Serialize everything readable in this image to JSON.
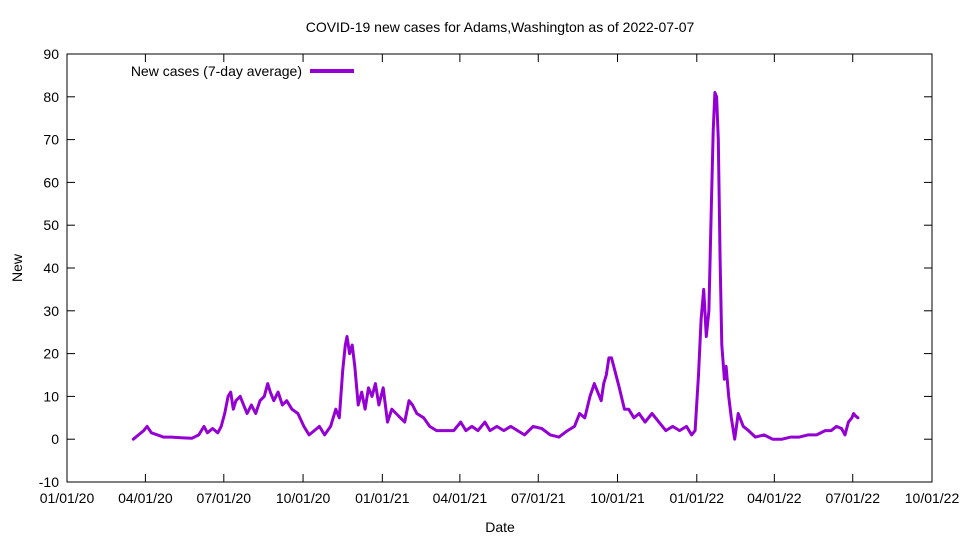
{
  "chart_data": {
    "type": "line",
    "title": "COVID-19 new cases for Adams,Washington as of 2022-07-07",
    "xlabel": "Date",
    "ylabel": "New",
    "xlim": [
      "2020-01-01",
      "2022-10-01"
    ],
    "ylim": [
      -10,
      90
    ],
    "grid": false,
    "legend_position": "top-left",
    "x_ticks": [
      "01/01/20",
      "04/01/20",
      "07/01/20",
      "10/01/20",
      "01/01/21",
      "04/01/21",
      "07/01/21",
      "10/01/21",
      "01/01/22",
      "04/01/22",
      "07/01/22",
      "10/01/22"
    ],
    "y_ticks": [
      -10,
      0,
      10,
      20,
      30,
      40,
      50,
      60,
      70,
      80,
      90
    ],
    "series": [
      {
        "name": "New cases (7-day average)",
        "color": "#9400d3",
        "points": [
          [
            "2020-03-18",
            0
          ],
          [
            "2020-03-24",
            1
          ],
          [
            "2020-03-30",
            2
          ],
          [
            "2020-04-03",
            3
          ],
          [
            "2020-04-08",
            1.5
          ],
          [
            "2020-04-15",
            1
          ],
          [
            "2020-04-22",
            0.5
          ],
          [
            "2020-05-01",
            0.5
          ],
          [
            "2020-05-15",
            0.3
          ],
          [
            "2020-05-25",
            0.2
          ],
          [
            "2020-06-02",
            1
          ],
          [
            "2020-06-08",
            3
          ],
          [
            "2020-06-12",
            1.5
          ],
          [
            "2020-06-18",
            2.5
          ],
          [
            "2020-06-24",
            1.5
          ],
          [
            "2020-06-28",
            3
          ],
          [
            "2020-07-02",
            6
          ],
          [
            "2020-07-06",
            10
          ],
          [
            "2020-07-09",
            11
          ],
          [
            "2020-07-12",
            7
          ],
          [
            "2020-07-15",
            9
          ],
          [
            "2020-07-20",
            10
          ],
          [
            "2020-07-24",
            8
          ],
          [
            "2020-07-28",
            6
          ],
          [
            "2020-08-02",
            8
          ],
          [
            "2020-08-07",
            6
          ],
          [
            "2020-08-12",
            9
          ],
          [
            "2020-08-17",
            10
          ],
          [
            "2020-08-21",
            13
          ],
          [
            "2020-08-24",
            11
          ],
          [
            "2020-08-28",
            9
          ],
          [
            "2020-09-02",
            11
          ],
          [
            "2020-09-07",
            8
          ],
          [
            "2020-09-12",
            9
          ],
          [
            "2020-09-18",
            7
          ],
          [
            "2020-09-25",
            6
          ],
          [
            "2020-10-02",
            3
          ],
          [
            "2020-10-08",
            1
          ],
          [
            "2020-10-14",
            2
          ],
          [
            "2020-10-20",
            3
          ],
          [
            "2020-10-26",
            1
          ],
          [
            "2020-11-02",
            3
          ],
          [
            "2020-11-08",
            7
          ],
          [
            "2020-11-12",
            5
          ],
          [
            "2020-11-16",
            16
          ],
          [
            "2020-11-19",
            22
          ],
          [
            "2020-11-21",
            24
          ],
          [
            "2020-11-24",
            20
          ],
          [
            "2020-11-27",
            22
          ],
          [
            "2020-11-30",
            17
          ],
          [
            "2020-12-04",
            8
          ],
          [
            "2020-12-08",
            11
          ],
          [
            "2020-12-12",
            7
          ],
          [
            "2020-12-16",
            12
          ],
          [
            "2020-12-20",
            10
          ],
          [
            "2020-12-24",
            13
          ],
          [
            "2020-12-28",
            8
          ],
          [
            "2021-01-02",
            12
          ],
          [
            "2021-01-07",
            4
          ],
          [
            "2021-01-12",
            7
          ],
          [
            "2021-01-17",
            6
          ],
          [
            "2021-01-22",
            5
          ],
          [
            "2021-01-27",
            4
          ],
          [
            "2021-02-01",
            9
          ],
          [
            "2021-02-05",
            8
          ],
          [
            "2021-02-10",
            6
          ],
          [
            "2021-02-18",
            5
          ],
          [
            "2021-02-25",
            3
          ],
          [
            "2021-03-05",
            2
          ],
          [
            "2021-03-15",
            2
          ],
          [
            "2021-03-25",
            2
          ],
          [
            "2021-04-02",
            4
          ],
          [
            "2021-04-08",
            2
          ],
          [
            "2021-04-15",
            3
          ],
          [
            "2021-04-22",
            2
          ],
          [
            "2021-04-30",
            4
          ],
          [
            "2021-05-06",
            2
          ],
          [
            "2021-05-14",
            3
          ],
          [
            "2021-05-22",
            2
          ],
          [
            "2021-05-30",
            3
          ],
          [
            "2021-06-07",
            2
          ],
          [
            "2021-06-15",
            1
          ],
          [
            "2021-06-25",
            3
          ],
          [
            "2021-07-05",
            2.5
          ],
          [
            "2021-07-15",
            1
          ],
          [
            "2021-07-25",
            0.5
          ],
          [
            "2021-08-04",
            2
          ],
          [
            "2021-08-12",
            3
          ],
          [
            "2021-08-18",
            6
          ],
          [
            "2021-08-24",
            5
          ],
          [
            "2021-08-30",
            10
          ],
          [
            "2021-09-04",
            13
          ],
          [
            "2021-09-08",
            11
          ],
          [
            "2021-09-12",
            9
          ],
          [
            "2021-09-15",
            13
          ],
          [
            "2021-09-18",
            15
          ],
          [
            "2021-09-21",
            19
          ],
          [
            "2021-09-24",
            19
          ],
          [
            "2021-09-28",
            16
          ],
          [
            "2021-10-03",
            12
          ],
          [
            "2021-10-09",
            7
          ],
          [
            "2021-10-14",
            7
          ],
          [
            "2021-10-20",
            5
          ],
          [
            "2021-10-26",
            6
          ],
          [
            "2021-11-02",
            4
          ],
          [
            "2021-11-10",
            6
          ],
          [
            "2021-11-18",
            4
          ],
          [
            "2021-11-26",
            2
          ],
          [
            "2021-12-04",
            3
          ],
          [
            "2021-12-12",
            2
          ],
          [
            "2021-12-20",
            3
          ],
          [
            "2021-12-26",
            1
          ],
          [
            "2021-12-30",
            2
          ],
          [
            "2022-01-03",
            15
          ],
          [
            "2022-01-06",
            28
          ],
          [
            "2022-01-09",
            35
          ],
          [
            "2022-01-12",
            24
          ],
          [
            "2022-01-15",
            30
          ],
          [
            "2022-01-18",
            55
          ],
          [
            "2022-01-20",
            72
          ],
          [
            "2022-01-22",
            81
          ],
          [
            "2022-01-24",
            80
          ],
          [
            "2022-01-26",
            70
          ],
          [
            "2022-01-28",
            42
          ],
          [
            "2022-01-30",
            22
          ],
          [
            "2022-02-02",
            14
          ],
          [
            "2022-02-04",
            17
          ],
          [
            "2022-02-07",
            10
          ],
          [
            "2022-02-10",
            5
          ],
          [
            "2022-02-14",
            0
          ],
          [
            "2022-02-18",
            6
          ],
          [
            "2022-02-24",
            3
          ],
          [
            "2022-03-02",
            2
          ],
          [
            "2022-03-10",
            0.5
          ],
          [
            "2022-03-20",
            1
          ],
          [
            "2022-03-30",
            0
          ],
          [
            "2022-04-10",
            0
          ],
          [
            "2022-04-20",
            0.5
          ],
          [
            "2022-04-30",
            0.5
          ],
          [
            "2022-05-10",
            1
          ],
          [
            "2022-05-20",
            1
          ],
          [
            "2022-05-30",
            2
          ],
          [
            "2022-06-06",
            2
          ],
          [
            "2022-06-12",
            3
          ],
          [
            "2022-06-18",
            2.5
          ],
          [
            "2022-06-22",
            1
          ],
          [
            "2022-06-26",
            4
          ],
          [
            "2022-06-30",
            5
          ],
          [
            "2022-07-02",
            6
          ],
          [
            "2022-07-04",
            5.5
          ],
          [
            "2022-07-07",
            5
          ]
        ]
      }
    ]
  }
}
